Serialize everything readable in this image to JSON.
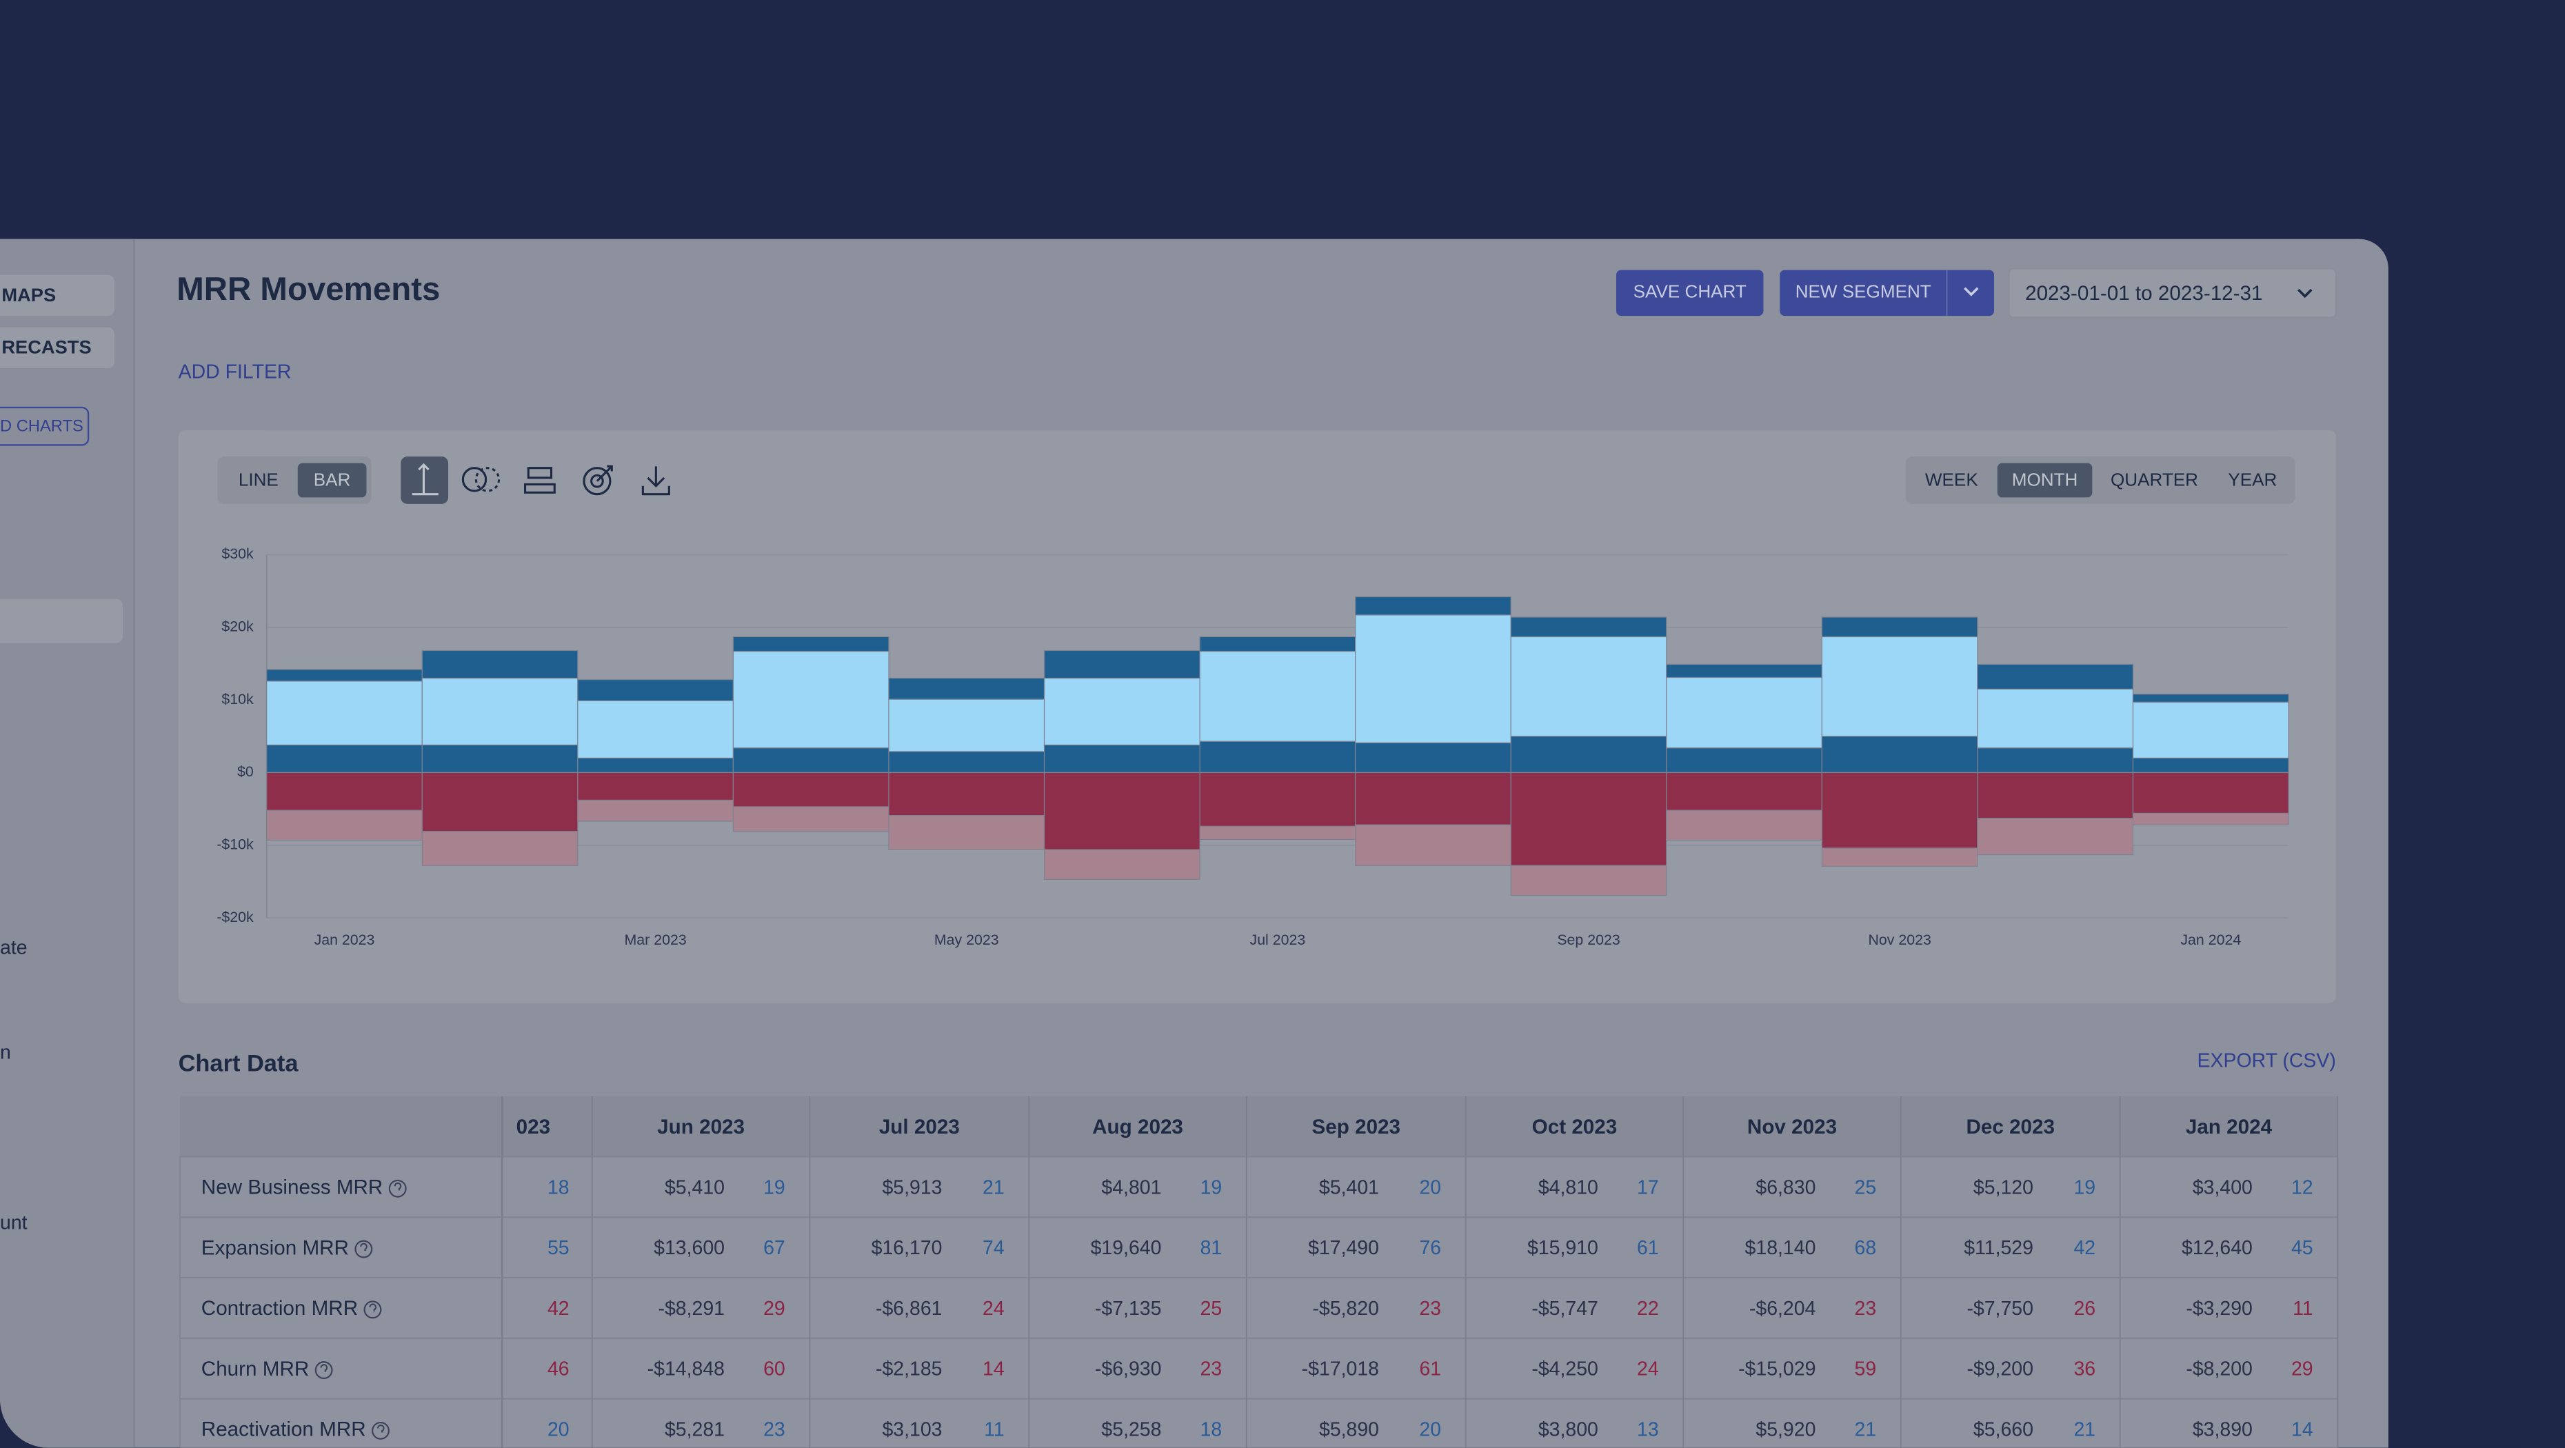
{
  "sidebar": {
    "items": [
      "MAPS",
      "RECASTS"
    ],
    "button": "D CHARTS",
    "fragments": [
      "ate",
      "n",
      "unt"
    ]
  },
  "header": {
    "title": "MRR Movements",
    "save": "SAVE CHART",
    "segment": "NEW SEGMENT",
    "date_range": "2023-01-01 to 2023-12-31",
    "filter": "ADD FILTER"
  },
  "toggles": {
    "chart_type": [
      "LINE",
      "BAR"
    ],
    "selected_type": 1,
    "period": [
      "WEEK",
      "MONTH",
      "QUARTER",
      "YEAR"
    ],
    "selected_period": 1
  },
  "chart_data": {
    "type": "bar",
    "stacked": true,
    "categories": [
      "Jan 2023",
      null,
      "Mar 2023",
      null,
      "May 2023",
      null,
      "Jul 2023",
      null,
      "Sep 2023",
      null,
      "Nov 2023",
      null,
      "Jan 2024"
    ],
    "series": [
      {
        "color": "#1f5f8f",
        "values": [
          3800,
          3800,
          2000,
          3400,
          2900,
          3800,
          4300,
          4100,
          5000,
          3400,
          5000,
          3400,
          2000
        ]
      },
      {
        "color": "#9cd7f7",
        "values": [
          8800,
          9200,
          7900,
          13300,
          7200,
          9200,
          12400,
          17600,
          13700,
          9700,
          13700,
          8100,
          7700
        ]
      },
      {
        "color": "#1f5f8f",
        "values": [
          1600,
          3800,
          2900,
          2000,
          2900,
          3800,
          2000,
          2500,
          2700,
          1800,
          2700,
          3400,
          1100
        ]
      },
      {
        "color": "#8f2e4b",
        "values": [
          -5200,
          -8100,
          -3800,
          -4700,
          -5900,
          -10600,
          -7400,
          -7200,
          -12800,
          -5200,
          -10400,
          -6300,
          -5600
        ]
      },
      {
        "color": "#a7828f",
        "values": [
          -4100,
          -4700,
          -2900,
          -3400,
          -4700,
          -4100,
          -1800,
          -5600,
          -4100,
          -4100,
          -2500,
          -5000,
          -1600
        ]
      }
    ],
    "ylim": [
      -20000,
      30000
    ],
    "yticks": [
      {
        "value": -20000,
        "label": "-$20k"
      },
      {
        "value": -10000,
        "label": "-$10k"
      },
      {
        "value": 0,
        "label": "$0"
      },
      {
        "value": 10000,
        "label": "$10k"
      },
      {
        "value": 20000,
        "label": "$20k"
      },
      {
        "value": 30000,
        "label": "$30k"
      }
    ],
    "grid": true
  },
  "table": {
    "title": "Chart Data",
    "export": "EXPORT (CSV)",
    "columns": [
      "023",
      "Jun 2023",
      "Jul 2023",
      "Aug 2023",
      "Sep 2023",
      "Oct 2023",
      "Nov 2023",
      "Dec 2023",
      "Jan 2024"
    ],
    "rows": [
      {
        "label": "New Business MRR",
        "partial_count": 18,
        "cells": [
          {
            "amount": "$5,410",
            "count": 19
          },
          {
            "amount": "$5,913",
            "count": 21
          },
          {
            "amount": "$4,801",
            "count": 19
          },
          {
            "amount": "$5,401",
            "count": 20
          },
          {
            "amount": "$4,810",
            "count": 17
          },
          {
            "amount": "$6,830",
            "count": 25
          },
          {
            "amount": "$5,120",
            "count": 19
          },
          {
            "amount": "$3,400",
            "count": 12
          }
        ]
      },
      {
        "label": "Expansion MRR",
        "partial_count": 55,
        "cells": [
          {
            "amount": "$13,600",
            "count": 67
          },
          {
            "amount": "$16,170",
            "count": 74
          },
          {
            "amount": "$19,640",
            "count": 81
          },
          {
            "amount": "$17,490",
            "count": 76
          },
          {
            "amount": "$15,910",
            "count": 61
          },
          {
            "amount": "$18,140",
            "count": 68
          },
          {
            "amount": "$11,529",
            "count": 42
          },
          {
            "amount": "$12,640",
            "count": 45
          }
        ]
      },
      {
        "label": "Contraction MRR",
        "partial_count": 42,
        "cells": [
          {
            "amount": "-$8,291",
            "count": 29
          },
          {
            "amount": "-$6,861",
            "count": 24
          },
          {
            "amount": "-$7,135",
            "count": 25
          },
          {
            "amount": "-$5,820",
            "count": 23
          },
          {
            "amount": "-$5,747",
            "count": 22
          },
          {
            "amount": "-$6,204",
            "count": 23
          },
          {
            "amount": "-$7,750",
            "count": 26
          },
          {
            "amount": "-$3,290",
            "count": 11
          }
        ]
      },
      {
        "label": "Churn MRR",
        "partial_count": 46,
        "cells": [
          {
            "amount": "-$14,848",
            "count": 60
          },
          {
            "amount": "-$2,185",
            "count": 14
          },
          {
            "amount": "-$6,930",
            "count": 23
          },
          {
            "amount": "-$17,018",
            "count": 61
          },
          {
            "amount": "-$4,250",
            "count": 24
          },
          {
            "amount": "-$15,029",
            "count": 59
          },
          {
            "amount": "-$9,200",
            "count": 36
          },
          {
            "amount": "-$8,200",
            "count": 29
          }
        ]
      },
      {
        "label": "Reactivation MRR",
        "partial_count": 20,
        "cells": [
          {
            "amount": "$5,281",
            "count": 23
          },
          {
            "amount": "$3,103",
            "count": 11
          },
          {
            "amount": "$5,258",
            "count": 18
          },
          {
            "amount": "$5,890",
            "count": 20
          },
          {
            "amount": "$3,800",
            "count": 13
          },
          {
            "amount": "$5,920",
            "count": 21
          },
          {
            "amount": "$5,660",
            "count": 21
          },
          {
            "amount": "$3,890",
            "count": 14
          }
        ]
      }
    ]
  }
}
